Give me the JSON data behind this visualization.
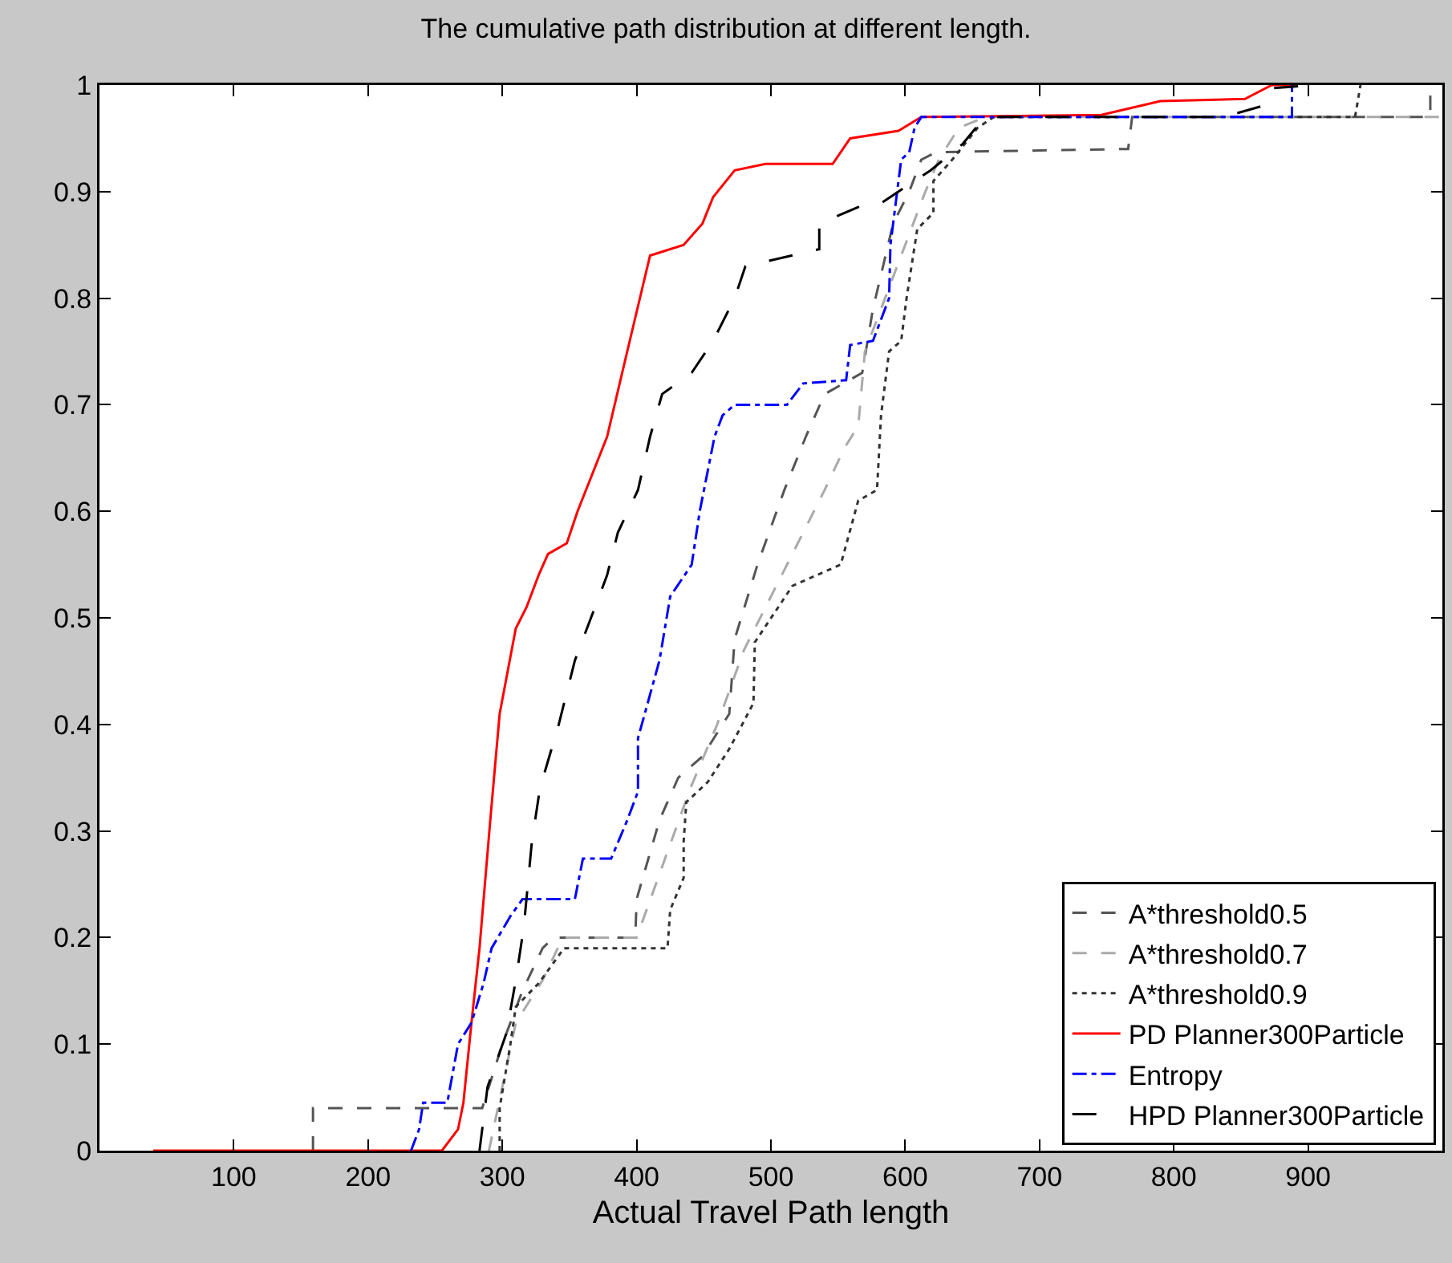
{
  "chart_data": {
    "type": "line",
    "title": "The cumulative path distribution at different length.",
    "xlabel": "Actual Travel Path length",
    "xlim": [
      0,
      1000
    ],
    "xticks": [
      100,
      200,
      300,
      400,
      500,
      600,
      700,
      800,
      900
    ],
    "ylim": [
      0,
      1
    ],
    "yticks": [
      0,
      0.1,
      0.2,
      0.3,
      0.4,
      0.5,
      0.6,
      0.7,
      0.8,
      0.9,
      1
    ],
    "grid": false,
    "legend": "bottom right",
    "marker": "none",
    "series": [
      {
        "name": "A*threshold0.5",
        "color": "#555555",
        "line_style": "dashed",
        "x": [
          159,
          159,
          285,
          300,
          315,
          330,
          338,
          399,
          400,
          417,
          431,
          449,
          469,
          473,
          490,
          510,
          526,
          540,
          568,
          576,
          591,
          603,
          612,
          623,
          766,
          769,
          991,
          991
        ],
        "values": [
          0,
          0.04,
          0.04,
          0.1,
          0.15,
          0.19,
          0.2,
          0.2,
          0.236,
          0.31,
          0.35,
          0.37,
          0.41,
          0.48,
          0.55,
          0.62,
          0.67,
          0.71,
          0.73,
          0.79,
          0.87,
          0.9,
          0.93,
          0.937,
          0.94,
          0.97,
          0.97,
          1
        ]
      },
      {
        "name": "A*threshold0.7",
        "color": "#aaaaaa",
        "line_style": "dashed",
        "x": [
          290,
          300,
          310,
          330,
          345,
          400,
          420,
          440,
          460,
          480,
          500,
          520,
          540,
          555,
          565,
          570,
          585,
          600,
          615,
          625,
          640,
          660,
          1000
        ],
        "values": [
          0,
          0.06,
          0.12,
          0.16,
          0.2,
          0.2,
          0.27,
          0.34,
          0.4,
          0.47,
          0.52,
          0.57,
          0.62,
          0.66,
          0.68,
          0.75,
          0.8,
          0.85,
          0.9,
          0.93,
          0.96,
          0.97,
          0.97
        ]
      },
      {
        "name": "A*threshold0.9",
        "color": "#333333",
        "line_style": "dotted",
        "x": [
          298,
          298,
          306,
          310,
          327,
          346,
          423,
          425,
          435,
          435,
          437,
          453,
          469,
          487,
          488,
          516,
          552,
          565,
          579,
          582,
          588,
          597,
          601,
          609,
          621,
          621,
          635,
          654,
          666,
          935,
          939
        ],
        "values": [
          0,
          0.04,
          0.1,
          0.135,
          0.157,
          0.19,
          0.19,
          0.226,
          0.256,
          0.29,
          0.327,
          0.346,
          0.377,
          0.42,
          0.477,
          0.53,
          0.55,
          0.61,
          0.62,
          0.69,
          0.75,
          0.76,
          0.8,
          0.865,
          0.88,
          0.91,
          0.93,
          0.96,
          0.97,
          0.97,
          1
        ]
      },
      {
        "name": "PD Planner300Particle",
        "color": "#ff0000",
        "line_style": "solid",
        "x": [
          40,
          255,
          267,
          271,
          277,
          283,
          291,
          298,
          310,
          318,
          327,
          334,
          348,
          356,
          378,
          393,
          410,
          435,
          449,
          457,
          473,
          496,
          546,
          559,
          595,
          612,
          746,
          790,
          853,
          873,
          890
        ],
        "values": [
          0,
          0,
          0.02,
          0.045,
          0.12,
          0.19,
          0.31,
          0.41,
          0.49,
          0.51,
          0.54,
          0.56,
          0.57,
          0.6,
          0.67,
          0.75,
          0.84,
          0.85,
          0.87,
          0.895,
          0.92,
          0.926,
          0.926,
          0.95,
          0.957,
          0.97,
          0.972,
          0.985,
          0.987,
          1,
          1
        ]
      },
      {
        "name": "Entropy",
        "color": "#0000ff",
        "line_style": "dashdot",
        "x": [
          232,
          238,
          241,
          259,
          267,
          277,
          286,
          292,
          306,
          315,
          354,
          360,
          381,
          393,
          401,
          401,
          417,
          425,
          441,
          447,
          458,
          464,
          473,
          512,
          524,
          556,
          559,
          576,
          588,
          589,
          594,
          597,
          603,
          607,
          612,
          888,
          888
        ],
        "values": [
          0,
          0.02,
          0.045,
          0.045,
          0.1,
          0.12,
          0.157,
          0.19,
          0.22,
          0.236,
          0.236,
          0.274,
          0.274,
          0.31,
          0.337,
          0.387,
          0.46,
          0.52,
          0.55,
          0.6,
          0.67,
          0.69,
          0.7,
          0.7,
          0.72,
          0.723,
          0.756,
          0.76,
          0.8,
          0.85,
          0.9,
          0.93,
          0.937,
          0.96,
          0.97,
          0.97,
          1
        ]
      },
      {
        "name": "HPD Planner300Particle",
        "color": "#000000",
        "line_style": "longdash",
        "x": [
          283,
          289,
          303,
          310,
          316,
          322,
          328,
          342,
          354,
          369,
          378,
          386,
          401,
          410,
          419,
          441,
          457,
          473,
          481,
          536,
          536,
          568,
          583,
          607,
          619,
          643,
          654,
          666,
          837,
          865,
          873,
          903
        ],
        "values": [
          0,
          0.06,
          0.11,
          0.16,
          0.21,
          0.29,
          0.34,
          0.4,
          0.46,
          0.51,
          0.54,
          0.58,
          0.62,
          0.67,
          0.71,
          0.73,
          0.76,
          0.8,
          0.83,
          0.846,
          0.87,
          0.887,
          0.89,
          0.91,
          0.92,
          0.945,
          0.962,
          0.97,
          0.97,
          0.98,
          0.997,
          1
        ]
      }
    ]
  }
}
